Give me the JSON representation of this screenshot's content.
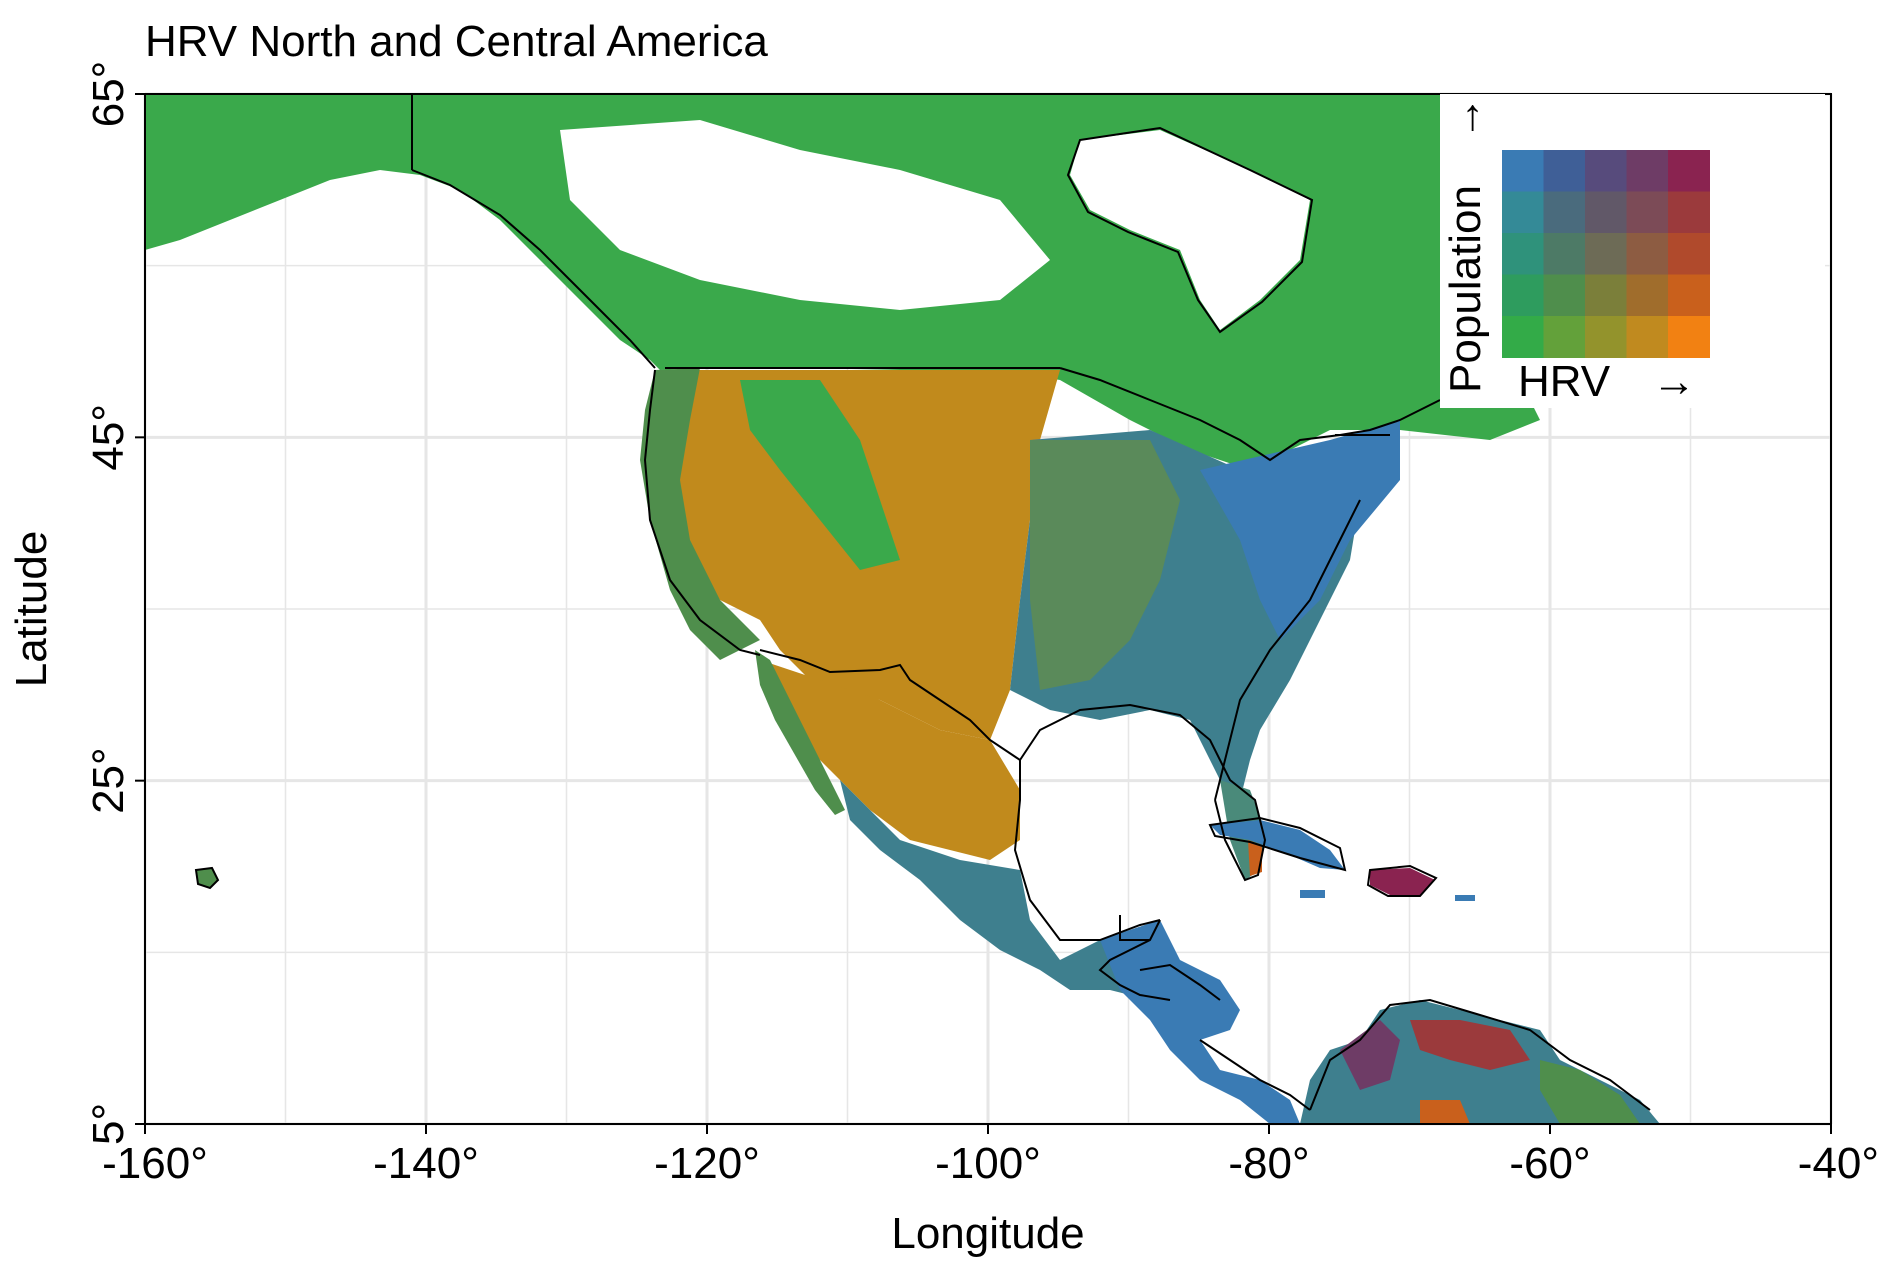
{
  "title": "HRV North and Central America",
  "x_axis": {
    "label": "Longitude",
    "range": [
      -160,
      -40
    ],
    "ticks": [
      {
        "value": -160,
        "label": "-160°"
      },
      {
        "value": -140,
        "label": "-140°"
      },
      {
        "value": -120,
        "label": "-120°"
      },
      {
        "value": -100,
        "label": "-100°"
      },
      {
        "value": -80,
        "label": "-80°"
      },
      {
        "value": -60,
        "label": "-60°"
      },
      {
        "value": -40,
        "label": "-40°"
      }
    ],
    "minor_gridlines": [
      -150,
      -130,
      -110,
      -90,
      -70,
      -50
    ]
  },
  "y_axis": {
    "label": "Latitude",
    "range": [
      5,
      65
    ],
    "ticks": [
      {
        "value": 5,
        "label": "5°"
      },
      {
        "value": 25,
        "label": "25°"
      },
      {
        "value": 45,
        "label": "45°"
      },
      {
        "value": 65,
        "label": "65°"
      }
    ],
    "minor_gridlines": [
      15,
      35,
      55
    ]
  },
  "legend": {
    "x_label": "HRV",
    "y_label": "Population",
    "arrow": "→",
    "placement": "top-right",
    "grid_colors_top_to_bottom": [
      [
        "#3a7bb4",
        "#3f5f97",
        "#574b7c",
        "#6e3c66",
        "#8a2350"
      ],
      [
        "#348a97",
        "#4a6b7d",
        "#615868",
        "#7c4b57",
        "#9b3a3c"
      ],
      [
        "#2f927b",
        "#4d7a66",
        "#6d6b56",
        "#8d5c42",
        "#b04a2c"
      ],
      [
        "#2e9c5e",
        "#4f8e4c",
        "#7b7f3a",
        "#a06d2c",
        "#c9601c"
      ],
      [
        "#33ab48",
        "#63a13a",
        "#93932c",
        "#c08a1f",
        "#f28112"
      ]
    ]
  },
  "palette": {
    "low_low": "#3aa94b",
    "high_hrv_low_pop": "#c18a1c",
    "low_hrv_high_pop": "#3a7bb4",
    "high_high": "#8a2350",
    "mid": "#5a8a5a",
    "coastline": "#000000",
    "grid": "#e6e6e6"
  }
}
